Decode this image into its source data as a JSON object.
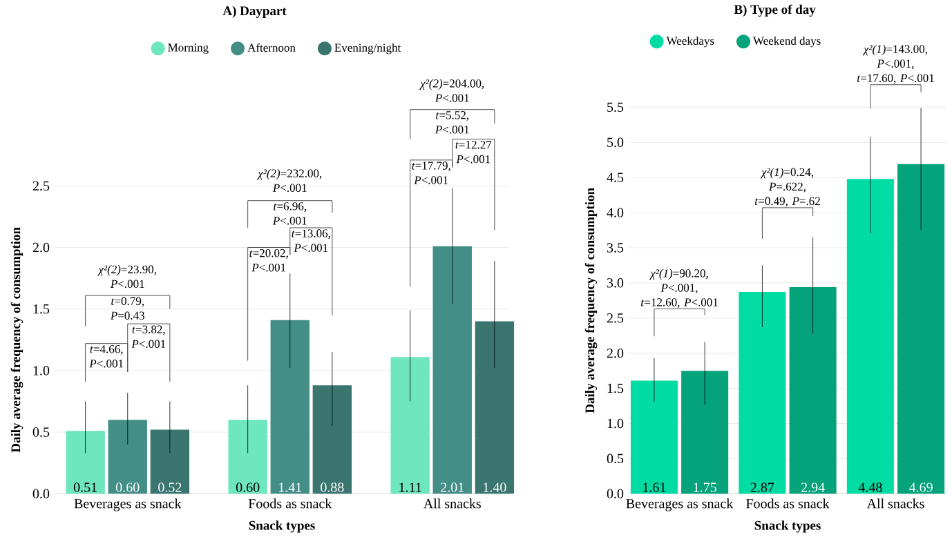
{
  "chart_data": [
    {
      "type": "bar",
      "title": "A) Daypart",
      "xlabel": "Snack types",
      "ylabel": "Daily average frequency of consumption",
      "categories": [
        "Beverages as snack",
        "Foods as snack",
        "All snacks"
      ],
      "series": [
        {
          "name": "Morning",
          "color": "#6ee6be",
          "values": [
            0.51,
            0.6,
            1.11
          ],
          "value_labels": [
            "0.51",
            "0.60",
            "1.11"
          ],
          "errors": [
            [
              0.33,
              0.75
            ],
            [
              0.33,
              0.88
            ],
            [
              0.75,
              1.49
            ]
          ]
        },
        {
          "name": "Afternoon",
          "color": "#438f88",
          "values": [
            0.6,
            1.41,
            2.01
          ],
          "value_labels": [
            "0.60",
            "1.41",
            "2.01"
          ],
          "errors": [
            [
              0.4,
              0.82
            ],
            [
              1.02,
              1.79
            ],
            [
              1.54,
              2.48
            ]
          ]
        },
        {
          "name": "Evening/night",
          "color": "#3a766f",
          "values": [
            0.52,
            0.88,
            1.4
          ],
          "value_labels": [
            "0.52",
            "0.88",
            "1.40"
          ],
          "errors": [
            [
              0.33,
              0.75
            ],
            [
              0.55,
              1.15
            ],
            [
              1.02,
              1.89
            ]
          ]
        }
      ],
      "ylim": [
        0,
        2.5
      ],
      "yticks": [
        {
          "value": 0,
          "label": "0.0"
        },
        {
          "value": 0.5,
          "label": "0.5"
        },
        {
          "value": 1,
          "label": "1.0"
        },
        {
          "value": 1.5,
          "label": "1.5"
        },
        {
          "value": 2,
          "label": "2.0"
        },
        {
          "value": 2.5,
          "label": "2.5"
        }
      ],
      "grid": "y",
      "legend": "top",
      "annotations": [
        "*χ²(2)*=23.90, *P*<.001",
        "*t*=0.79, *P*=0.43",
        "*t*=3.82, *P*<.001",
        "*t*=4.66, *P*<.001",
        "*χ²(2)*=232.00, *P*<.001",
        "*t*=6.96, *P*<.001",
        "*t*=13.06, *P*<.001",
        "*t*=20.02, *P*<.001",
        "*χ²(2)*=204.00, *P*<.001",
        "*t*=5.52, *P*<.001",
        "*t*=12.27 *P*<.001",
        "*t*=17.79, *P*<.001"
      ]
    },
    {
      "type": "bar",
      "title": "B) Type of day",
      "xlabel": "Snack types",
      "ylabel": "Daily average frequency of consumption",
      "categories": [
        "Beverages as snack",
        "Foods as snack",
        "All snacks"
      ],
      "series": [
        {
          "name": "Weekdays",
          "color": "#00dca4",
          "values": [
            1.61,
            2.87,
            4.48
          ],
          "value_labels": [
            "1.61",
            "2.87",
            "4.48"
          ],
          "errors": [
            [
              1.31,
              1.93
            ],
            [
              2.37,
              3.25
            ],
            [
              3.71,
              5.08
            ]
          ]
        },
        {
          "name": "Weekend days",
          "color": "#05a37b",
          "values": [
            1.75,
            2.94,
            4.69
          ],
          "value_labels": [
            "1.75",
            "2.94",
            "4.69"
          ],
          "errors": [
            [
              1.27,
              2.16
            ],
            [
              2.28,
              3.65
            ],
            [
              3.75,
              5.49
            ]
          ]
        }
      ],
      "ylim": [
        0,
        5.5
      ],
      "yticks": [
        {
          "value": 0,
          "label": "0.0"
        },
        {
          "value": 0.5,
          "label": "0.5"
        },
        {
          "value": 1,
          "label": "1.0"
        },
        {
          "value": 1.5,
          "label": "1.5"
        },
        {
          "value": 2,
          "label": "2.0"
        },
        {
          "value": 2.5,
          "label": "2.5"
        },
        {
          "value": 3,
          "label": "3.0"
        },
        {
          "value": 3.5,
          "label": "3.5"
        },
        {
          "value": 4,
          "label": "4.0"
        },
        {
          "value": 4.5,
          "label": "4.5"
        },
        {
          "value": 5,
          "label": "5.0"
        },
        {
          "value": 5.5,
          "label": "5.5"
        }
      ],
      "grid": "y",
      "legend": "top",
      "annotations": [
        "*χ²(1)*=90.20, *P*<.001, *t*=12.60, *P*<.001",
        "*χ²(1)*=0.24, *P*=.622, *t*=0.49, *P*=.62",
        "*χ²(1)*=143.00, *P*<.001, *t*=17.60, *P*<.001"
      ]
    }
  ]
}
